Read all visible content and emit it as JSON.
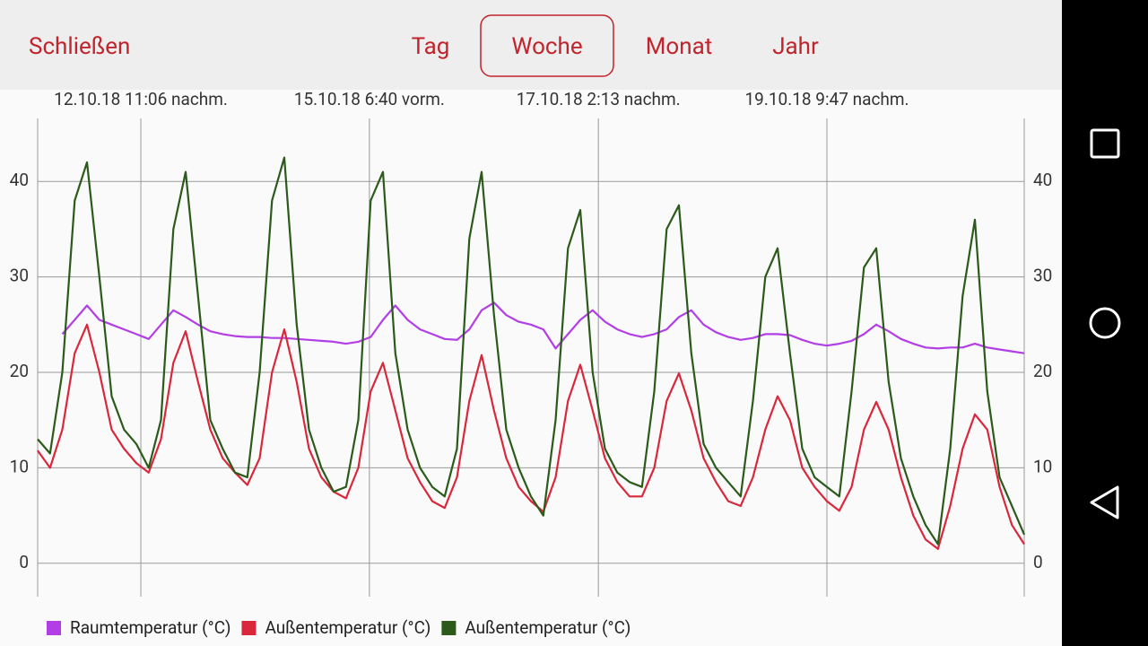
{
  "toolbar": {
    "close": "Schließen",
    "tabs": [
      "Tag",
      "Woche",
      "Monat",
      "Jahr"
    ],
    "selected": 1
  },
  "chart_data": {
    "type": "line",
    "x": [
      0,
      3,
      6,
      9,
      12,
      15,
      18,
      21,
      24,
      27,
      30,
      33,
      36,
      39,
      42,
      45,
      48,
      51,
      54,
      57,
      60,
      63,
      66,
      69,
      72,
      75,
      78,
      81,
      84,
      87,
      90,
      93,
      96,
      99,
      102,
      105,
      108,
      111,
      114,
      117,
      120,
      123,
      126,
      129,
      132,
      135,
      138,
      141,
      144,
      147,
      150,
      153,
      156,
      159,
      162,
      165,
      168,
      171,
      174,
      177,
      180,
      183,
      186,
      189,
      192,
      195,
      198,
      201,
      204,
      207,
      210,
      213,
      216,
      219,
      222,
      225,
      228,
      231,
      234,
      237,
      240
    ],
    "xlim": [
      0,
      240
    ],
    "xticks": [
      {
        "value": 25.1,
        "label": "12.10.18 11:06 nachm."
      },
      {
        "value": 80.7,
        "label": "15.10.18 6:40 vorm."
      },
      {
        "value": 136.4,
        "label": "17.10.18 2:13 nachm."
      },
      {
        "value": 192,
        "label": "19.10.18 9:47 nachm."
      }
    ],
    "ylim": [
      -3.5,
      46.6
    ],
    "yticks": [
      0,
      10,
      20,
      30,
      40
    ],
    "y2lim": [
      -3.5,
      46.6
    ],
    "y2ticks": [
      0,
      10,
      20,
      30,
      40
    ],
    "grid": true,
    "series": [
      {
        "name": "Raumtemperatur (°C)",
        "color": "#b23fe6",
        "values": [
          null,
          null,
          24,
          25.5,
          27,
          25.5,
          25,
          24.5,
          24,
          23.5,
          25,
          26.5,
          25.8,
          25,
          24.3,
          24,
          23.8,
          23.7,
          23.7,
          23.6,
          23.6,
          23.5,
          23.4,
          23.3,
          23.2,
          23,
          23.2,
          23.7,
          25.5,
          27,
          25.5,
          24.5,
          24,
          23.5,
          23.4,
          24.5,
          26.5,
          27.3,
          26,
          25.3,
          25,
          24.5,
          22.5,
          24,
          25.5,
          26.5,
          25.3,
          24.5,
          24,
          23.7,
          24,
          24.5,
          25.8,
          26.5,
          25,
          24.2,
          23.7,
          23.4,
          23.6,
          24,
          24,
          23.9,
          23.4,
          23,
          22.8,
          23,
          23.3,
          24,
          25,
          24.3,
          23.5,
          23,
          22.6,
          22.5,
          22.6,
          22.6,
          23,
          22.6,
          22.4,
          22.2,
          22
        ]
      },
      {
        "name": "Außentemperatur (°C)",
        "color": "#d9283c",
        "values": [
          11.8,
          10,
          14,
          22,
          25,
          20,
          14,
          12,
          10.5,
          9.5,
          13,
          21,
          24.3,
          19,
          14,
          11,
          9.5,
          8.2,
          11,
          20,
          24.5,
          19,
          12,
          9,
          7.5,
          6.8,
          10,
          18,
          21,
          16,
          11,
          8.5,
          6.5,
          5.8,
          9,
          17,
          21.8,
          16,
          11,
          8,
          6.5,
          5.4,
          9,
          17,
          20.8,
          16,
          11,
          8.5,
          7,
          7,
          10,
          17,
          19.9,
          16,
          11,
          8.5,
          6.5,
          6,
          9,
          14,
          17.5,
          15,
          10,
          8,
          6.5,
          5.5,
          8,
          14,
          16.9,
          14,
          9,
          5,
          2.5,
          1.5,
          6,
          12,
          15.6,
          14,
          8,
          4,
          2
        ]
      },
      {
        "name": "Außentemperatur (°C)",
        "color": "#2b5a1a",
        "values": [
          13,
          11.5,
          20,
          38,
          42,
          30,
          17.5,
          14,
          12.5,
          10,
          15,
          35,
          41,
          28,
          15,
          12,
          9.5,
          9,
          20,
          38,
          42.5,
          25,
          14,
          10,
          7.5,
          8,
          15,
          38,
          41,
          22,
          14,
          10,
          8,
          7,
          12,
          34,
          41,
          26,
          14,
          10,
          7,
          5,
          15,
          33,
          37,
          20,
          12,
          9.5,
          8.5,
          8,
          18,
          35,
          37.5,
          22,
          12.5,
          10,
          8.5,
          7,
          17,
          30,
          33,
          22,
          12,
          9,
          8,
          7,
          18,
          31,
          33,
          19,
          11,
          7,
          4,
          2,
          12,
          28,
          36,
          18,
          9,
          6,
          3
        ]
      }
    ]
  }
}
